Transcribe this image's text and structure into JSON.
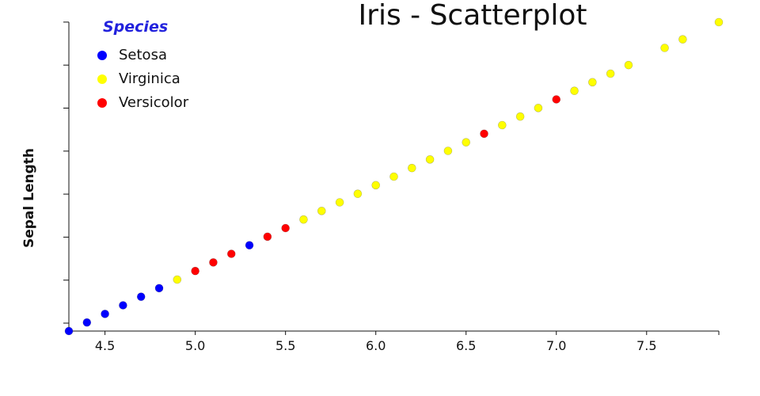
{
  "chart_data": {
    "type": "scatter",
    "title": "Iris - Scatterplot",
    "xlabel": "",
    "ylabel": "Sepal Length",
    "xlim": [
      4.3,
      7.9
    ],
    "ylim": [
      4.3,
      7.9
    ],
    "xticks": [
      4.5,
      5.0,
      5.5,
      6.0,
      6.5,
      7.0,
      7.5
    ],
    "xtick_labels": [
      "4.5",
      "5.0",
      "5.5",
      "6.0",
      "6.5",
      "7.0",
      "7.5"
    ],
    "legend_title": "Species",
    "legend_position": "top-left",
    "grid": false,
    "series": [
      {
        "name": "Setosa",
        "color": "#0000ff",
        "x": [
          4.3,
          4.4,
          4.5,
          4.6,
          4.7,
          4.8,
          5.3
        ],
        "y": [
          4.3,
          4.4,
          4.5,
          4.6,
          4.7,
          4.8,
          5.3
        ]
      },
      {
        "name": "Virginica",
        "color": "#ffff00",
        "x": [
          4.9,
          5.6,
          5.7,
          5.8,
          5.9,
          6.0,
          6.1,
          6.2,
          6.3,
          6.4,
          6.5,
          6.7,
          6.8,
          6.9,
          7.1,
          7.2,
          7.3,
          7.4,
          7.6,
          7.7,
          7.9
        ],
        "y": [
          4.9,
          5.6,
          5.7,
          5.8,
          5.9,
          6.0,
          6.1,
          6.2,
          6.3,
          6.4,
          6.5,
          6.7,
          6.8,
          6.9,
          7.1,
          7.2,
          7.3,
          7.4,
          7.6,
          7.7,
          7.9
        ]
      },
      {
        "name": "Versicolor",
        "color": "#ff0000",
        "x": [
          5.0,
          5.1,
          5.2,
          5.4,
          5.5,
          6.6,
          7.0
        ],
        "y": [
          5.0,
          5.1,
          5.2,
          5.4,
          5.5,
          6.6,
          7.0
        ]
      }
    ]
  }
}
